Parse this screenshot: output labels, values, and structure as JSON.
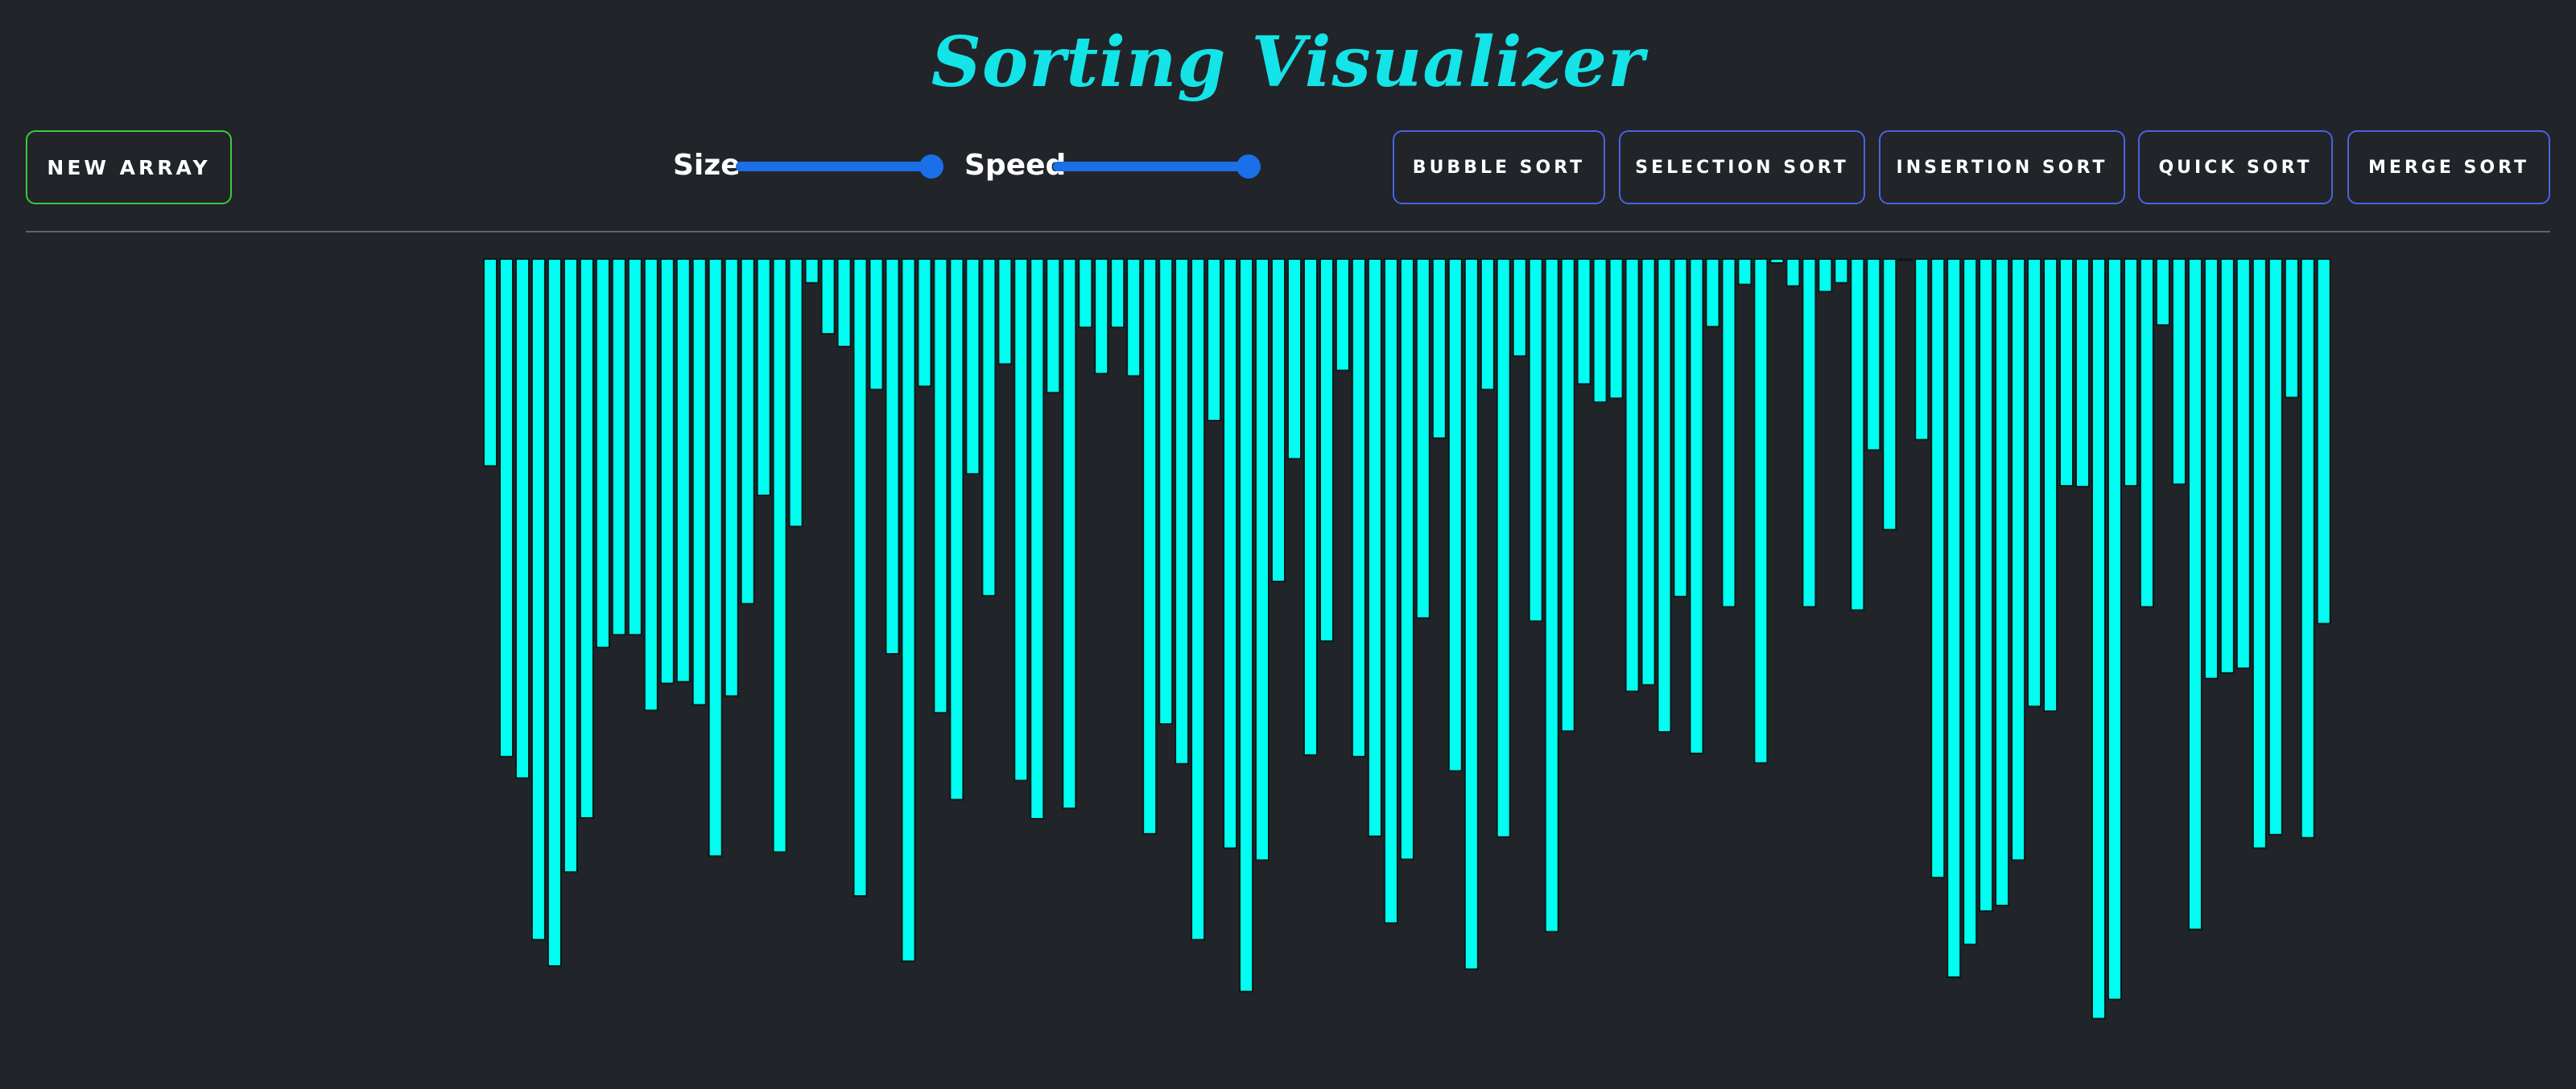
{
  "title": "Sorting Visualizer",
  "controls": {
    "new_array_label": "NEW ARRAY",
    "size_label": "Size",
    "speed_label": "Speed",
    "size_value": 1.0,
    "speed_value": 1.0
  },
  "algorithms": [
    "BUBBLE SORT",
    "SELECTION SORT",
    "INSERTION SORT",
    "QUICK SORT",
    "MERGE SORT"
  ],
  "colors": {
    "background": "#212428",
    "title": "#14e3e7",
    "bar": "#00fff0",
    "bar_border": "#0a1a1a",
    "new_array_border": "#3ec93e",
    "sort_button_border": "#4a63e0",
    "slider": "#1b6fe8"
  },
  "array": [
    260,
    625,
    652,
    855,
    888,
    770,
    702,
    488,
    472,
    472,
    567,
    533,
    531,
    560,
    750,
    549,
    433,
    297,
    745,
    336,
    30,
    94,
    110,
    800,
    164,
    496,
    882,
    160,
    570,
    679,
    270,
    423,
    132,
    655,
    703,
    168,
    690,
    86,
    144,
    86,
    147,
    722,
    584,
    634,
    855,
    203,
    740,
    920,
    755,
    405,
    251,
    623,
    480,
    140,
    625,
    725,
    834,
    754,
    451,
    225,
    643,
    892,
    164,
    726,
    122,
    455,
    845,
    593,
    157,
    180,
    175,
    543,
    535,
    594,
    424,
    621,
    85,
    437,
    32,
    633,
    5,
    34,
    437,
    41,
    30,
    441,
    240,
    340,
    0,
    227,
    777,
    902,
    861,
    819,
    812,
    755,
    562,
    568,
    285,
    286,
    954,
    930,
    285,
    437,
    83,
    283,
    842,
    527,
    520,
    514,
    740,
    723,
    174,
    727,
    458
  ],
  "array_max": 1000
}
